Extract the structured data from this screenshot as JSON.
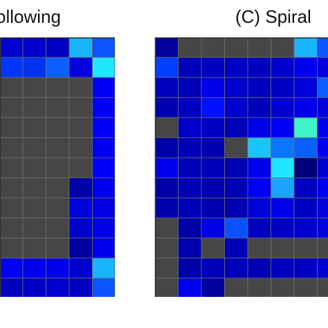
{
  "panels": [
    {
      "id": "left",
      "title": "ollowing",
      "rows": [
        [
          "#0000c8",
          "#0000d0",
          "#0000cc",
          "#0000c4",
          "#19b5ff",
          "#0a55ff"
        ],
        [
          "#0b52ff",
          "#0036ff",
          "#0033f0",
          "#0a60ff",
          "#0000dd",
          "#1ee7ff"
        ],
        [
          "#464646",
          "#464646",
          "#464646",
          "#464646",
          "#464646",
          "#0000f5"
        ],
        [
          "#464646",
          "#464646",
          "#464646",
          "#464646",
          "#464646",
          "#0000f2"
        ],
        [
          "#464646",
          "#464646",
          "#464646",
          "#464646",
          "#464646",
          "#0000f6"
        ],
        [
          "#464646",
          "#464646",
          "#464646",
          "#464646",
          "#464646",
          "#0000f0"
        ],
        [
          "#464646",
          "#464646",
          "#464646",
          "#464646",
          "#464646",
          "#0000f8"
        ],
        [
          "#464646",
          "#464646",
          "#464646",
          "#464646",
          "#0000a8",
          "#0000ea"
        ],
        [
          "#464646",
          "#464646",
          "#464646",
          "#464646",
          "#0000d8",
          "#0000e0"
        ],
        [
          "#464646",
          "#464646",
          "#464646",
          "#464646",
          "#0000cc",
          "#0000e8"
        ],
        [
          "#464646",
          "#464646",
          "#464646",
          "#464646",
          "#0000a0",
          "#0000f0"
        ],
        [
          "#0000f4",
          "#0000f6",
          "#0000ec",
          "#0000ec",
          "#0000cc",
          "#19b5ff"
        ],
        [
          "#0000b4",
          "#0000c0",
          "#0000c4",
          "#0000cc",
          "#0000c0",
          "#0a55ff"
        ]
      ]
    },
    {
      "id": "right",
      "title": "(C) Spiral",
      "rows": [
        [
          "#00009a",
          "#464646",
          "#464646",
          "#464646",
          "#464646",
          "#464646",
          "#19b5ff",
          "#0a55ff"
        ],
        [
          "#0040ff",
          "#0000b8",
          "#0000c0",
          "#0000c4",
          "#0000c0",
          "#0000cc",
          "#0000f0",
          "#0000dd"
        ],
        [
          "#0000c0",
          "#0000b8",
          "#0000e8",
          "#0000cc",
          "#0000c0",
          "#0000c4",
          "#0000d8",
          "#0a60ff"
        ],
        [
          "#0000b0",
          "#0000c0",
          "#0010ff",
          "#0000cc",
          "#0000b8",
          "#0000d0",
          "#0000ee",
          "#0000d8"
        ],
        [
          "#464646",
          "#0000c8",
          "#0000c4",
          "#0000b8",
          "#0000e8",
          "#0000f4",
          "#3ff3c8",
          "#0000f0"
        ],
        [
          "#0000a8",
          "#0000b8",
          "#0000b0",
          "#464646",
          "#1ac5ff",
          "#0a75ff",
          "#0a60ff",
          "#0000f0"
        ],
        [
          "#0000ee",
          "#0000b8",
          "#0000b8",
          "#0000b4",
          "#0000f0",
          "#1ee7ff",
          "#00007a",
          "#0000d0"
        ],
        [
          "#0000a8",
          "#0000b8",
          "#0000b0",
          "#0000b4",
          "#0000f4",
          "#1aa4ff",
          "#0000c0",
          "#0000f0"
        ],
        [
          "#0000ac",
          "#0000b8",
          "#0000b0",
          "#0000b0",
          "#0000d8",
          "#0000e8",
          "#0000c4",
          "#0000dd"
        ],
        [
          "#464646",
          "#0000a8",
          "#0000e8",
          "#0b52ff",
          "#0000c0",
          "#0000c4",
          "#0000d0",
          "#0000e0"
        ],
        [
          "#464646",
          "#0000b0",
          "#464646",
          "#0000b8",
          "#464646",
          "#464646",
          "#464646",
          "#464646"
        ],
        [
          "#464646",
          "#0000a8",
          "#0000b8",
          "#0000b8",
          "#0000b4",
          "#0000c0",
          "#0000c4",
          "#0000d0"
        ],
        [
          "#464646",
          "#0000f0",
          "#00009a",
          "#464646",
          "#464646",
          "#464646",
          "#464646",
          "#464646"
        ]
      ]
    }
  ]
}
